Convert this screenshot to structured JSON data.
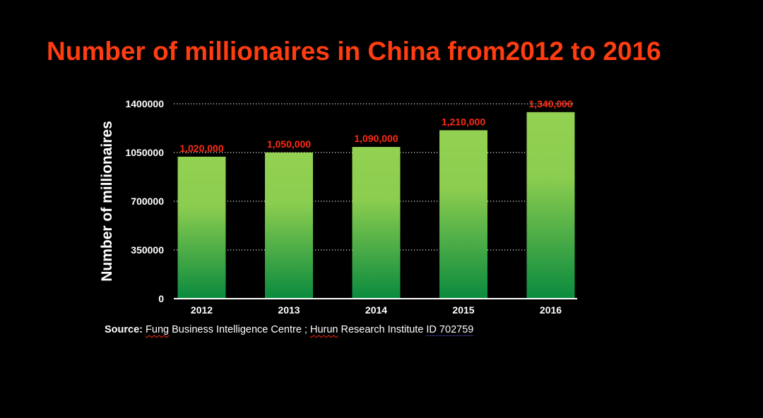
{
  "title": "Number of millionaires in China from2012 to 2016",
  "chart_data": {
    "type": "bar",
    "title": "Number of millionaires in China from2012 to 2016",
    "categories": [
      "2012",
      "2013",
      "2014",
      "2015",
      "2016"
    ],
    "values": [
      1020000,
      1050000,
      1090000,
      1210000,
      1340000
    ],
    "value_labels": [
      "1,020,000",
      "1,050,000",
      "1,090,000",
      "1,210,000",
      "1,340,000"
    ],
    "ylabel": "Number of millionaires",
    "xlabel": "",
    "ylim": [
      0,
      1400000
    ],
    "yticks": [
      0,
      350000,
      700000,
      1050000,
      1400000
    ],
    "ytick_labels": [
      "0",
      "350000",
      "700000",
      "1050000",
      "1400000"
    ],
    "grid": "dotted horizontal",
    "bar_color_top": "#93d152",
    "bar_color_bottom": "#0a8a3e",
    "label_color": "#ff2a14"
  },
  "source": {
    "label": "Source:",
    "part1": "Fung",
    "part2": " Business Intelligence Centre ; ",
    "part3": "Hurun",
    "part4": " Research Institute ",
    "part5": "ID 702759"
  },
  "colors": {
    "background": "#000000",
    "title": "#ff3d10",
    "text": "#ffffff"
  }
}
